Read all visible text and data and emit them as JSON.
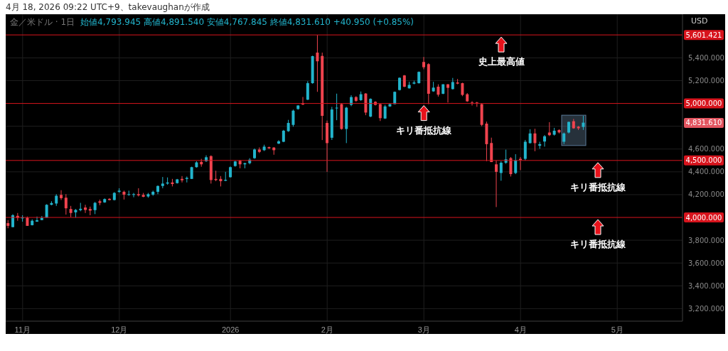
{
  "chart_data": {
    "type": "candlestick",
    "title": "金／米ドル · 1日",
    "subtitle": "始値4,793.945 高値4,891.540 安値4,767.845 終値4,831.610 +40.950 (+0.85%)",
    "ylabel": "USD",
    "categories": [
      null,
      null,
      null,
      "11月",
      null,
      null,
      null,
      null,
      null,
      null,
      null,
      null,
      null,
      null,
      null,
      null,
      null,
      null,
      null,
      null,
      null,
      null,
      null,
      "12月",
      null,
      null,
      null,
      null,
      null,
      null,
      null,
      null,
      null,
      null,
      null,
      null,
      null,
      null,
      null,
      null,
      null,
      null,
      null,
      null,
      null,
      null,
      "2026",
      null,
      null,
      null,
      null,
      null,
      null,
      null,
      null,
      null,
      null,
      null,
      null,
      null,
      null,
      null,
      null,
      null,
      null,
      null,
      "2月",
      null,
      null,
      null,
      null,
      null,
      null,
      null,
      null,
      null,
      null,
      null,
      null,
      null,
      null,
      null,
      null,
      null,
      null,
      null,
      "3月",
      null,
      null,
      null,
      null,
      null,
      null,
      null,
      null,
      null,
      null,
      null,
      null,
      null,
      null,
      null,
      null,
      null,
      null,
      null,
      "4月",
      null,
      null,
      null,
      null,
      null,
      null,
      null,
      null,
      null,
      null,
      null,
      null,
      null,
      null,
      null,
      null,
      null,
      null,
      null,
      "5月",
      null,
      null,
      null,
      null,
      null,
      null,
      null,
      null,
      null,
      null,
      null,
      null,
      null
    ],
    "ohlc": [
      [
        3950,
        3977,
        3905,
        3926
      ],
      [
        3915,
        4029,
        3913,
        4019
      ],
      [
        4014,
        4039,
        3971,
        3996
      ],
      [
        3992,
        4019,
        3963,
        4000
      ],
      [
        3998,
        4008,
        3926,
        3926
      ],
      [
        3932,
        3983,
        3930,
        3971
      ],
      [
        3963,
        4008,
        3963,
        3975
      ],
      [
        3977,
        4012,
        3977,
        3996
      ],
      [
        3998,
        4116,
        3998,
        4111
      ],
      [
        4111,
        4142,
        4107,
        4126
      ],
      [
        4122,
        4204,
        4101,
        4190
      ],
      [
        4198,
        4239,
        4153,
        4169
      ],
      [
        4173,
        4204,
        4025,
        4080
      ],
      [
        4074,
        4101,
        4002,
        4039
      ],
      [
        4045,
        4074,
        3998,
        4066
      ],
      [
        4064,
        4128,
        4054,
        4076
      ],
      [
        4087,
        4111,
        4039,
        4066
      ],
      [
        4074,
        4095,
        4019,
        4060
      ],
      [
        4064,
        4136,
        4029,
        4128
      ],
      [
        4142,
        4157,
        4107,
        4128
      ],
      [
        4132,
        4167,
        4128,
        4161
      ],
      [
        4163,
        4169,
        4149,
        4153
      ],
      [
        4153,
        4222,
        4149,
        4215
      ],
      [
        4225,
        4256,
        4215,
        4235
      ],
      [
        4225,
        4235,
        4157,
        4200
      ],
      [
        4198,
        4235,
        4190,
        4204
      ],
      [
        4200,
        4215,
        4177,
        4204
      ],
      [
        4204,
        4256,
        4184,
        4194
      ],
      [
        4198,
        4215,
        4177,
        4181
      ],
      [
        4184,
        4215,
        4173,
        4204
      ],
      [
        4200,
        4235,
        4190,
        4225
      ],
      [
        4225,
        4281,
        4204,
        4276
      ],
      [
        4276,
        4355,
        4256,
        4297
      ],
      [
        4297,
        4351,
        4287,
        4307
      ],
      [
        4307,
        4338,
        4272,
        4293
      ],
      [
        4301,
        4338,
        4297,
        4334
      ],
      [
        4338,
        4363,
        4307,
        4326
      ],
      [
        4338,
        4359,
        4307,
        4347
      ],
      [
        4338,
        4445,
        4338,
        4441
      ],
      [
        4441,
        4493,
        4437,
        4483
      ],
      [
        4487,
        4514,
        4445,
        4466
      ],
      [
        4493,
        4545,
        4487,
        4528
      ],
      [
        4538,
        4545,
        4297,
        4328
      ],
      [
        4338,
        4410,
        4318,
        4328
      ],
      [
        4338,
        4363,
        4272,
        4318
      ],
      [
        4322,
        4400,
        4318,
        4330
      ],
      [
        4353,
        4447,
        4350,
        4441
      ],
      [
        4451,
        4497,
        4445,
        4491
      ],
      [
        4497,
        4505,
        4431,
        4466
      ],
      [
        4466,
        4480,
        4431,
        4476
      ],
      [
        4476,
        4520,
        4466,
        4507
      ],
      [
        4520,
        4605,
        4514,
        4596
      ],
      [
        4596,
        4614,
        4565,
        4575
      ],
      [
        4590,
        4638,
        4583,
        4621
      ],
      [
        4617,
        4621,
        4600,
        4607
      ],
      [
        4613,
        4617,
        4550,
        4590
      ],
      [
        4648,
        4678,
        4643,
        4668
      ],
      [
        4664,
        4768,
        4660,
        4761
      ],
      [
        4757,
        4856,
        4751,
        4829
      ],
      [
        4812,
        4946,
        4796,
        4937
      ],
      [
        4951,
        4986,
        4945,
        4982
      ],
      [
        5003,
        5057,
        4986,
        4991
      ],
      [
        5033,
        5195,
        5030,
        5178
      ],
      [
        5178,
        5419,
        5173,
        5415
      ],
      [
        5446,
        5601.421,
        5102,
        5370
      ],
      [
        5417,
        5446,
        4679,
        4891
      ],
      [
        4829,
        4850,
        4400,
        4652
      ],
      [
        4699,
        4970,
        4680,
        4947
      ],
      [
        4957,
        5086,
        4853,
        4963
      ],
      [
        4994,
        5003,
        4770,
        4776
      ],
      [
        4776,
        4970,
        4652,
        4963
      ],
      [
        4988,
        5072,
        4976,
        5056
      ],
      [
        5056,
        5064,
        5014,
        5023
      ],
      [
        5029,
        5105,
        5023,
        5081
      ],
      [
        5087,
        5091,
        4897,
        4920
      ],
      [
        4885,
        5045,
        4879,
        5040
      ],
      [
        5014,
        5020,
        4982,
        4988
      ],
      [
        4994,
        4998,
        4846,
        4871
      ],
      [
        4868,
        4988,
        4864,
        4974
      ],
      [
        4974,
        5003,
        4970,
        4994
      ],
      [
        4994,
        5105,
        4994,
        5102
      ],
      [
        5118,
        5229,
        5114,
        5225
      ],
      [
        5246,
        5250,
        5143,
        5147
      ],
      [
        5133,
        5190,
        5130,
        5163
      ],
      [
        5174,
        5200,
        5168,
        5184
      ],
      [
        5178,
        5281,
        5174,
        5277
      ],
      [
        5364,
        5408,
        5300,
        5318
      ],
      [
        5345,
        5353,
        4994,
        5085
      ],
      [
        5106,
        5190,
        5102,
        5139
      ],
      [
        5147,
        5168,
        5060,
        5077
      ],
      [
        5085,
        5170,
        5081,
        5168
      ],
      [
        5168,
        5170,
        5008,
        5137
      ],
      [
        5126,
        5224,
        5122,
        5188
      ],
      [
        5184,
        5215,
        5168,
        5174
      ],
      [
        5178,
        5182,
        5064,
        5075
      ],
      [
        5081,
        5091,
        5014,
        5019
      ],
      [
        5008,
        5020,
        4982,
        4998
      ],
      [
        5008,
        5014,
        4970,
        4998
      ],
      [
        4994,
        5003,
        4800,
        4812
      ],
      [
        4823,
        4841,
        4493,
        4643
      ],
      [
        4653,
        4700,
        4486,
        4486
      ],
      [
        4466,
        4499,
        4091,
        4400
      ],
      [
        4390,
        4493,
        4322,
        4480
      ],
      [
        4480,
        4595,
        4470,
        4510
      ],
      [
        4520,
        4530,
        4359,
        4380
      ],
      [
        4390,
        4555,
        4380,
        4501
      ],
      [
        4514,
        4530,
        4415,
        4503
      ],
      [
        4514,
        4680,
        4499,
        4664
      ],
      [
        4652,
        4774,
        4648,
        4737
      ],
      [
        4737,
        4778,
        4581,
        4652
      ],
      [
        4629,
        4664,
        4602,
        4643
      ],
      [
        4666,
        4723,
        4621,
        4712
      ],
      [
        4745,
        4836,
        4714,
        4722
      ],
      [
        4726,
        4786,
        4718,
        4761
      ],
      [
        4767,
        4774,
        4737,
        4746
      ],
      [
        4664,
        4745,
        4643,
        4737
      ],
      [
        4745,
        4841,
        4737,
        4838
      ],
      [
        4844,
        4864,
        4778,
        4782
      ],
      [
        4796,
        4802,
        4767,
        4782
      ],
      [
        4793.945,
        4891.54,
        4767.845,
        4831.61
      ],
      null,
      null,
      null,
      null,
      null,
      null,
      null,
      null,
      null,
      null,
      null,
      null,
      null,
      null,
      null,
      null,
      null,
      null,
      null,
      null
    ],
    "colors": [
      "#f0434e",
      "#22b4cc",
      "#f0434e",
      "#22b4cc",
      "#f0434e",
      "#22b4cc",
      "#22b4cc",
      "#22b4cc",
      "#22b4cc",
      "#22b4cc",
      "#22b4cc",
      "#f0434e",
      "#f0434e",
      "#f0434e",
      "#22b4cc",
      "#22b4cc",
      "#f0434e",
      "#f0434e",
      "#22b4cc",
      "#f0434e",
      "#22b4cc",
      "#f0434e",
      "#22b4cc",
      "#22b4cc",
      "#f0434e",
      "#22b4cc",
      "#22b4cc",
      "#f0434e",
      "#f0434e",
      "#22b4cc",
      "#22b4cc",
      "#22b4cc",
      "#22b4cc",
      "#22b4cc",
      "#f0434e",
      "#22b4cc",
      "#f0434e",
      "#22b4cc",
      "#22b4cc",
      "#22b4cc",
      "#f0434e",
      "#22b4cc",
      "#f0434e",
      "#f0434e",
      "#f0434e",
      "#22b4cc",
      "#22b4cc",
      "#22b4cc",
      "#f0434e",
      "#22b4cc",
      "#22b4cc",
      "#22b4cc",
      "#f0434e",
      "#22b4cc",
      "#f0434e",
      "#f0434e",
      "#22b4cc",
      "#22b4cc",
      "#22b4cc",
      "#22b4cc",
      "#22b4cc",
      "#f0434e",
      "#22b4cc",
      "#22b4cc",
      "#f0434e",
      "#f0434e",
      "#f0434e",
      "#22b4cc",
      "#22b4cc",
      "#f0434e",
      "#22b4cc",
      "#22b4cc",
      "#f0434e",
      "#22b4cc",
      "#f0434e",
      "#22b4cc",
      "#f0434e",
      "#f0434e",
      "#22b4cc",
      "#22b4cc",
      "#22b4cc",
      "#22b4cc",
      "#f0434e",
      "#22b4cc",
      "#22b4cc",
      "#22b4cc",
      "#f0434e",
      "#f0434e",
      "#22b4cc",
      "#f0434e",
      "#22b4cc",
      "#f0434e",
      "#22b4cc",
      "#f0434e",
      "#f0434e",
      "#f0434e",
      "#f0434e",
      "#f0434e",
      "#f0434e",
      "#f0434e",
      "#f0434e",
      "#f0434e",
      "#22b4cc",
      "#22b4cc",
      "#f0434e",
      "#22b4cc",
      "#f0434e",
      "#22b4cc",
      "#22b4cc",
      "#f0434e",
      "#22b4cc",
      "#22b4cc",
      "#f0434e",
      "#22b4cc",
      "#f0434e",
      "#22b4cc",
      "#22b4cc",
      "#f0434e",
      "#f0434e",
      "#22b4cc",
      null,
      null,
      null,
      null,
      null,
      null,
      null,
      null,
      null,
      null,
      null,
      null,
      null,
      null,
      null,
      null,
      null,
      null,
      null,
      null
    ],
    "ylim": [
      3090,
      5783
    ],
    "yticks": [
      {
        "value": 3200,
        "label": "3,200.000"
      },
      {
        "value": 3400,
        "label": "3,400.000"
      },
      {
        "value": 3600,
        "label": "3,600.000"
      },
      {
        "value": 3800,
        "label": "3,800.000"
      },
      {
        "value": 4200,
        "label": "4,200.000"
      },
      {
        "value": 4400,
        "label": "4,400.000"
      },
      {
        "value": 4600,
        "label": "4,600.000"
      },
      {
        "value": 4800,
        "label": null
      },
      {
        "value": 5200,
        "label": "5,200.000"
      },
      {
        "value": 5400,
        "label": "5,400.000"
      }
    ],
    "grid": true,
    "ref_lines": [
      {
        "axis": "y",
        "value": 5601.421,
        "label": "5,601.421",
        "color": "#d8141d"
      },
      {
        "axis": "y",
        "value": 5000,
        "label": "5,000.000",
        "color": "#d8141d"
      },
      {
        "axis": "y",
        "value": 4500,
        "label": "4,500.000",
        "color": "#d8141d"
      },
      {
        "axis": "y",
        "value": 4000,
        "label": "4,000.000",
        "color": "#d8141d"
      }
    ],
    "annotations": [
      "4月 18, 2026 09:22 UTC+9、takevaughanが作成",
      "史上最高値",
      "キリ番抵抗線",
      "キリ番抵抗線",
      "キリ番抵抗線",
      "4,831.610"
    ]
  }
}
